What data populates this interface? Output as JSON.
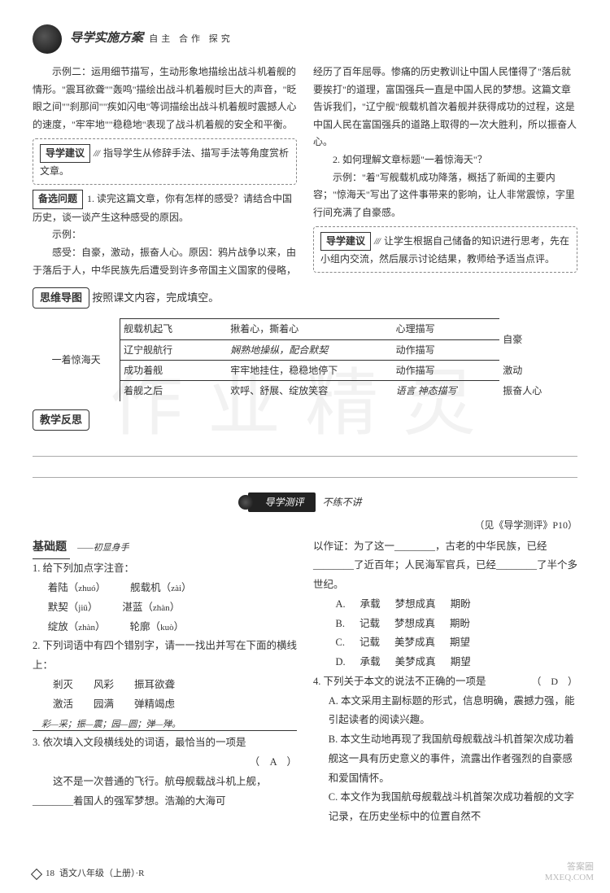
{
  "header": {
    "title": "导学实施方案",
    "subtitle": "自主 合作 探究"
  },
  "top_left": {
    "p1": "示例二：运用细节描写，生动形象地描绘出战斗机着舰的情形。\"震耳欲聋\"\"轰鸣\"描绘出战斗机着舰时巨大的声音，\"眨眼之间\"\"刹那间\"\"疾如闪电\"等词描绘出战斗机着舰时震撼人心的速度，\"牢牢地\"\"稳稳地\"表现了战斗机着舰的安全和平衡。",
    "box1_label": "导学建议",
    "box1_text": "指导学生从修辞手法、描写手法等角度赏析文章。",
    "box2_label": "备选问题",
    "box2_text": "1. 读完这篇文章，你有怎样的感受？请结合中国历史，谈一谈产生这种感受的原因。",
    "p2a": "示例：",
    "p2b": "感受：自豪，激动，振奋人心。原因：鸦片战争以来，由于落后于人，中华民族先后遭受到许多帝国主义国家的侵略，"
  },
  "top_right": {
    "p1": "经历了百年屈辱。惨痛的历史教训让中国人民懂得了\"落后就要挨打\"的道理，富国强兵一直是中国人民的梦想。这篇文章告诉我们，\"辽宁舰\"舰载机首次着舰并获得成功的过程，这是中国人民在富国强兵的道路上取得的一次大胜利，所以振奋人心。",
    "q2": "2. 如何理解文章标题\"一着惊海天\"？",
    "p2": "示例：\"着\"写舰载机成功降落，概括了新闻的主要内容；\"惊海天\"写出了这件事带来的影响，让人非常震惊，字里行间充满了自豪感。",
    "box_label": "导学建议",
    "box_text": "让学生根据自己储备的知识进行思考，先在小组内交流，然后展示讨论结果，教师给予适当点评。"
  },
  "mindmap": {
    "label": "思维导图",
    "instr": "按照课文内容，完成填空。",
    "root": "一着惊海天",
    "rows": [
      {
        "c1": "舰载机起飞",
        "c2": "揪着心，撕着心",
        "c3": "心理描写"
      },
      {
        "c1": "辽宁舰航行",
        "c2": "娴熟地操纵，配合默契",
        "c3": "动作描写"
      },
      {
        "c1": "成功着舰",
        "c2": "牢牢地挂住，稳稳地停下",
        "c3": "动作描写"
      },
      {
        "c1": "着舰之后",
        "c2": "欢呼、舒展、绽放笑容",
        "c3": "语言 神态描写"
      }
    ],
    "right_col": [
      "自豪",
      "激动",
      "振奋人心"
    ]
  },
  "reflection_label": "教学反思",
  "ribbon": {
    "badge": "导学测评",
    "note": "不练不讲",
    "page_ref": "（见《导学测评》P10）"
  },
  "basics": {
    "heading": "基础题",
    "sub": "——初显身手",
    "q1": {
      "stem": "1. 给下列加点字注音：",
      "items": [
        {
          "word": "着陆（",
          "py": "zhuó",
          "tail": "）"
        },
        {
          "word": "舰载机（",
          "py": "zài",
          "tail": "）"
        },
        {
          "word": "默契（",
          "py": "jiū",
          "tail": "）"
        },
        {
          "word": "湛蓝（",
          "py": "zhàn",
          "tail": "）"
        },
        {
          "word": "绽放（",
          "py": "zhàn",
          "tail": "）"
        },
        {
          "word": "轮廓（",
          "py": "kuò",
          "tail": "）"
        }
      ]
    },
    "q2": {
      "stem": "2. 下列词语中有四个错别字，请一一找出并写在下面的横线上：",
      "line1": "剎灭　　风彩　　振耳欲聋",
      "line2": "激活　　园满　　弹精竭虑",
      "answer_line": "彩—采；振—震；园—圆；弹—殚。"
    },
    "q3": {
      "stem_a": "3. 依次填入文段横线处的词语，最恰当的一项是",
      "ans": "（　A　）",
      "body": "这不是一次普通的飞行。航母舰载战斗机上舰，________着国人的强军梦想。浩瀚的大海可"
    }
  },
  "right_bottom": {
    "cont": "以作证：为了这一________，古老的中华民族，已经________了近百年；人民海军官兵，已经________了半个多世纪。",
    "opts": [
      {
        "k": "A.",
        "a": "承载",
        "b": "梦想成真",
        "c": "期盼"
      },
      {
        "k": "B.",
        "a": "记载",
        "b": "梦想成真",
        "c": "期盼"
      },
      {
        "k": "C.",
        "a": "记载",
        "b": "美梦成真",
        "c": "期望"
      },
      {
        "k": "D.",
        "a": "承载",
        "b": "美梦成真",
        "c": "期望"
      }
    ],
    "q4": {
      "stem": "4. 下列关于本文的说法不正确的一项是",
      "ans": "（　D　）",
      "items": [
        "A. 本文采用主副标题的形式，信息明确，震撼力强，能引起读者的阅读兴趣。",
        "B. 本文生动地再现了我国航母舰载战斗机首架次成功着舰这一具有历史意义的事件，流露出作者强烈的自豪感和爱国情怀。",
        "C. 本文作为我国航母舰载战斗机首架次成功着舰的文字记录，在历史坐标中的位置自然不"
      ]
    }
  },
  "footer": {
    "page": "18",
    "book": "语文八年级（上册）·R"
  },
  "watermark": {
    "l1": "答案圈",
    "l2": "MXEQ.COM"
  },
  "bg_wm": "作业精灵"
}
